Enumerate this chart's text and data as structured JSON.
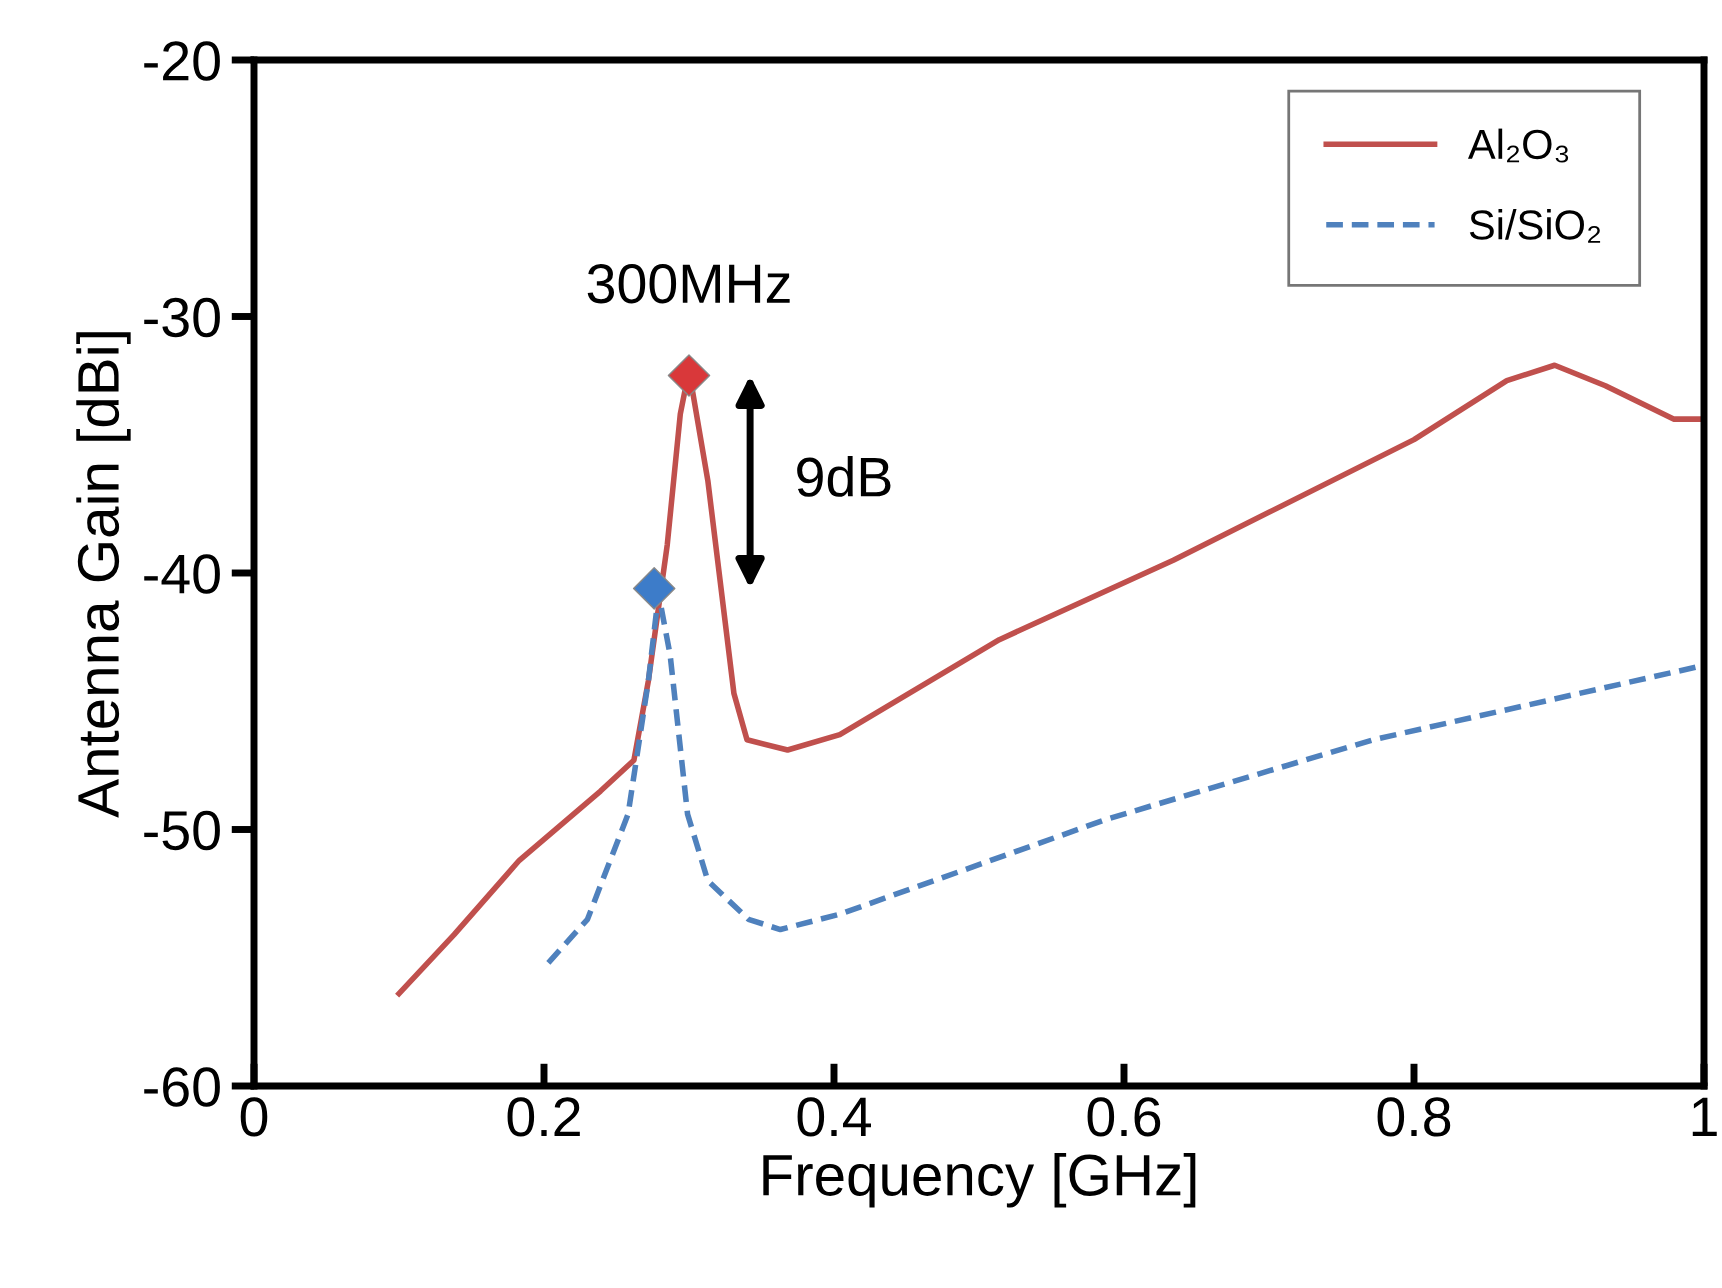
{
  "chart_data": {
    "type": "line",
    "xlabel": "Frequency [GHz]",
    "ylabel": "Antenna Gain [dBi]",
    "xlim": [
      0,
      1
    ],
    "ylim": [
      -60,
      -20
    ],
    "xticks": [
      0,
      0.2,
      0.4,
      0.6,
      0.8,
      1
    ],
    "yticks": [
      -60,
      -50,
      -40,
      -30,
      -20
    ],
    "grid": false,
    "legend": "top right",
    "series": [
      {
        "name": "Al₂O₃",
        "color": "#c0504d",
        "line_style": "solid",
        "x": [
          0.1,
          0.138,
          0.183,
          0.239,
          0.262,
          0.272,
          0.285,
          0.294,
          0.3,
          0.313,
          0.331,
          0.34,
          0.368,
          0.404,
          0.514,
          0.634,
          0.8,
          0.864,
          0.897,
          0.932,
          0.979,
          1.0
        ],
        "values": [
          -56.4,
          -54.1,
          -51.2,
          -48.5,
          -47.3,
          -44.2,
          -38.9,
          -33.8,
          -32.1,
          -36.4,
          -44.7,
          -46.5,
          -46.9,
          -46.3,
          -42.6,
          -39.5,
          -34.8,
          -32.5,
          -31.9,
          -32.7,
          -34.0,
          -34.0
        ]
      },
      {
        "name": "Si/SiO₂",
        "color": "#4f81bd",
        "line_style": "dashed",
        "x": [
          0.203,
          0.23,
          0.258,
          0.272,
          0.279,
          0.287,
          0.299,
          0.313,
          0.341,
          0.363,
          0.404,
          0.588,
          0.772,
          1.0
        ],
        "values": [
          -55.2,
          -53.5,
          -49.4,
          -44.2,
          -40.8,
          -43.2,
          -49.4,
          -52.0,
          -53.5,
          -53.9,
          -53.3,
          -49.6,
          -46.5,
          -43.6
        ]
      },
      {
        "color": "#d9383a",
        "type": "scatter",
        "marker": "diamond",
        "x": [
          0.3
        ],
        "values": [
          -32.3
        ]
      },
      {
        "color": "#3d7cc9",
        "type": "scatter",
        "marker": "diamond",
        "x": [
          0.276
        ],
        "values": [
          -40.6
        ]
      }
    ],
    "annotations": [
      {
        "text": "300MHz",
        "x": 0.3,
        "y": -32.3
      },
      "9dB"
    ]
  }
}
